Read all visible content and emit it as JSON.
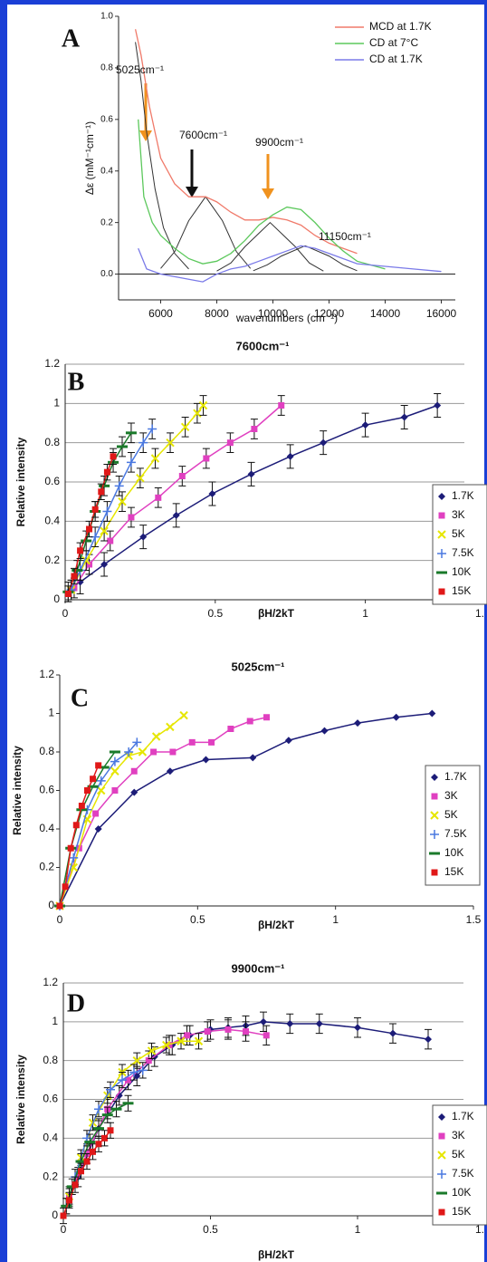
{
  "chart_data": [
    {
      "type": "line",
      "panel_label": "A",
      "x_label": "wavenumbers (cm⁻¹)",
      "y_label": "Δε (mM⁻¹cm⁻¹)",
      "xlim": [
        4500,
        16500
      ],
      "ylim": [
        -0.1,
        1.0
      ],
      "xticks": [
        6000,
        8000,
        10000,
        12000,
        14000,
        16000
      ],
      "yticks": [
        {
          "value": 0,
          "label": "0.0"
        },
        {
          "value": 0.2,
          "label": "0.2"
        },
        {
          "value": 0.4,
          "label": "0.4"
        },
        {
          "value": 0.6,
          "label": "0.6"
        },
        {
          "value": 0.8,
          "label": "0.8"
        },
        {
          "value": 1.0,
          "label": "1.0"
        }
      ],
      "legend": "top-right",
      "annotations": [
        "5025cm⁻¹",
        "7600cm⁻¹",
        "9900cm⁻¹",
        "11150cm⁻¹"
      ],
      "series": [
        {
          "name": "MCD at 1.7K",
          "color": "#f07a6a",
          "x": [
            5100,
            5300,
            5600,
            6000,
            6500,
            7000,
            7600,
            8000,
            8500,
            9000,
            9500,
            10000,
            10500,
            11000,
            11500,
            12000,
            12500,
            13000
          ],
          "values": [
            0.95,
            0.85,
            0.65,
            0.45,
            0.35,
            0.3,
            0.3,
            0.28,
            0.24,
            0.21,
            0.21,
            0.22,
            0.21,
            0.19,
            0.15,
            0.12,
            0.1,
            0.08
          ]
        },
        {
          "name": "CD at 7°C",
          "color": "#5cc85c",
          "x": [
            5200,
            5400,
            5700,
            6000,
            6500,
            7000,
            7500,
            8000,
            8500,
            9000,
            9500,
            10000,
            10500,
            11000,
            11500,
            12000,
            12500,
            13000,
            14000
          ],
          "values": [
            0.6,
            0.3,
            0.2,
            0.15,
            0.1,
            0.06,
            0.04,
            0.05,
            0.08,
            0.13,
            0.19,
            0.23,
            0.26,
            0.25,
            0.2,
            0.14,
            0.09,
            0.05,
            0.02
          ]
        },
        {
          "name": "CD at 1.7K",
          "color": "#7a7ae8",
          "x": [
            5200,
            5500,
            6000,
            7000,
            7500,
            8000,
            8500,
            9000,
            9500,
            10000,
            10500,
            11000,
            11500,
            12000,
            13000,
            14000,
            15000,
            16000
          ],
          "values": [
            0.1,
            0.02,
            0.0,
            -0.02,
            -0.03,
            0.0,
            0.02,
            0.03,
            0.05,
            0.07,
            0.09,
            0.11,
            0.1,
            0.08,
            0.04,
            0.03,
            0.02,
            0.01
          ]
        }
      ],
      "components": [
        {
          "color": "#333333",
          "x": [
            5100,
            5300,
            5500,
            5800,
            6100,
            6500,
            7000
          ],
          "values": [
            0.9,
            0.75,
            0.55,
            0.33,
            0.18,
            0.08,
            0.02
          ]
        },
        {
          "color": "#333333",
          "x": [
            6000,
            6500,
            7000,
            7600,
            8200,
            8700,
            9200
          ],
          "values": [
            0.022,
            0.087,
            0.207,
            0.3,
            0.207,
            0.087,
            0.022
          ]
        },
        {
          "color": "#333333",
          "x": [
            8000,
            8500,
            9000,
            9900,
            10800,
            11300,
            11800
          ],
          "values": [
            0.012,
            0.043,
            0.106,
            0.2,
            0.106,
            0.043,
            0.012
          ]
        },
        {
          "color": "#333333",
          "x": [
            9300,
            9800,
            10300,
            11150,
            12000,
            12500,
            13000
          ],
          "values": [
            0.013,
            0.036,
            0.07,
            0.11,
            0.07,
            0.036,
            0.013
          ]
        }
      ]
    },
    {
      "type": "scatter",
      "panel_label": "B",
      "title": "7600cm⁻¹",
      "x_label": "βH/2kT",
      "y_label": "Relative intensity",
      "xlim": [
        0,
        1.33
      ],
      "ylim": [
        0,
        1.2
      ],
      "grid": true,
      "legend": "right",
      "xticks": [
        0,
        0.5,
        1,
        {
          "value": 1.5,
          "label": "1."
        }
      ],
      "yticks": [
        0,
        0.2,
        0.4,
        0.6,
        0.8,
        1,
        1.2
      ],
      "series": [
        {
          "name": "1.7K",
          "color": "#1c1c78",
          "marker": "diamond",
          "error": 0.06,
          "x": [
            0.05,
            0.13,
            0.26,
            0.37,
            0.49,
            0.62,
            0.75,
            0.86,
            1.0,
            1.13,
            1.24
          ],
          "values": [
            0.09,
            0.18,
            0.32,
            0.43,
            0.54,
            0.64,
            0.73,
            0.8,
            0.89,
            0.93,
            0.99
          ]
        },
        {
          "name": "3K",
          "color": "#e040c0",
          "marker": "square",
          "error": 0.05,
          "x": [
            0.03,
            0.08,
            0.15,
            0.22,
            0.31,
            0.39,
            0.47,
            0.55,
            0.63,
            0.72
          ],
          "values": [
            0.06,
            0.18,
            0.3,
            0.42,
            0.52,
            0.63,
            0.72,
            0.8,
            0.87,
            0.99
          ]
        },
        {
          "name": "5K",
          "color": "#e6e600",
          "marker": "x",
          "error": 0.05,
          "x": [
            0.02,
            0.07,
            0.13,
            0.19,
            0.25,
            0.3,
            0.35,
            0.4,
            0.44,
            0.46
          ],
          "values": [
            0.05,
            0.2,
            0.35,
            0.5,
            0.62,
            0.72,
            0.8,
            0.88,
            0.95,
            0.99
          ]
        },
        {
          "name": "7.5K",
          "color": "#4a78e0",
          "marker": "plus",
          "error": 0.05,
          "x": [
            0.02,
            0.05,
            0.1,
            0.14,
            0.18,
            0.22,
            0.26,
            0.29
          ],
          "values": [
            0.05,
            0.15,
            0.32,
            0.45,
            0.58,
            0.7,
            0.8,
            0.87
          ]
        },
        {
          "name": "10K",
          "color": "#1a7a2a",
          "marker": "dash",
          "error": 0.05,
          "x": [
            0.01,
            0.04,
            0.07,
            0.1,
            0.13,
            0.16,
            0.19,
            0.22
          ],
          "values": [
            0.04,
            0.15,
            0.3,
            0.45,
            0.58,
            0.7,
            0.78,
            0.85
          ]
        },
        {
          "name": "15K",
          "color": "#e01818",
          "marker": "square",
          "error": 0.04,
          "x": [
            0.01,
            0.03,
            0.05,
            0.08,
            0.1,
            0.12,
            0.14,
            0.16
          ],
          "values": [
            0.03,
            0.12,
            0.25,
            0.36,
            0.46,
            0.55,
            0.65,
            0.73
          ]
        }
      ]
    },
    {
      "type": "scatter",
      "panel_label": "C",
      "title": "5025cm⁻¹",
      "x_label": "βH/2kT",
      "y_label": "Relative intensity",
      "xlim": [
        0,
        1.5
      ],
      "ylim": [
        0,
        1.2
      ],
      "grid": false,
      "legend": "right",
      "xticks": [
        0,
        0.5,
        1,
        1.5
      ],
      "yticks": [
        0,
        0.2,
        0.4,
        0.6,
        0.8,
        1,
        1.2
      ],
      "series": [
        {
          "name": "1.7K",
          "color": "#1c1c78",
          "marker": "diamond",
          "x": [
            0,
            0.14,
            0.27,
            0.4,
            0.53,
            0.7,
            0.83,
            0.96,
            1.08,
            1.22,
            1.35
          ],
          "values": [
            0,
            0.4,
            0.59,
            0.7,
            0.76,
            0.77,
            0.86,
            0.91,
            0.95,
            0.98,
            1.0
          ]
        },
        {
          "name": "3K",
          "color": "#e040c0",
          "marker": "square",
          "x": [
            0,
            0.07,
            0.13,
            0.2,
            0.27,
            0.34,
            0.41,
            0.48,
            0.55,
            0.62,
            0.69,
            0.75
          ],
          "values": [
            0,
            0.3,
            0.48,
            0.6,
            0.7,
            0.8,
            0.8,
            0.85,
            0.85,
            0.92,
            0.96,
            0.98
          ]
        },
        {
          "name": "5K",
          "color": "#e6e600",
          "marker": "x",
          "x": [
            0,
            0.05,
            0.1,
            0.15,
            0.2,
            0.25,
            0.3,
            0.35,
            0.4,
            0.45
          ],
          "values": [
            0,
            0.2,
            0.45,
            0.6,
            0.7,
            0.78,
            0.8,
            0.88,
            0.93,
            0.99
          ]
        },
        {
          "name": "7.5K",
          "color": "#4a78e0",
          "marker": "plus",
          "x": [
            0,
            0.05,
            0.1,
            0.15,
            0.2,
            0.25,
            0.28
          ],
          "values": [
            0,
            0.25,
            0.5,
            0.65,
            0.75,
            0.8,
            0.85
          ]
        },
        {
          "name": "10K",
          "color": "#1a7a2a",
          "marker": "dash",
          "x": [
            0,
            0.04,
            0.08,
            0.12,
            0.16,
            0.2
          ],
          "values": [
            0,
            0.3,
            0.5,
            0.62,
            0.72,
            0.8
          ]
        },
        {
          "name": "15K",
          "color": "#e01818",
          "marker": "square",
          "x": [
            0,
            0.02,
            0.04,
            0.06,
            0.08,
            0.1,
            0.12,
            0.14
          ],
          "values": [
            0,
            0.1,
            0.3,
            0.42,
            0.52,
            0.6,
            0.66,
            0.73
          ]
        }
      ]
    },
    {
      "type": "scatter",
      "panel_label": "D",
      "title": "9900cm⁻¹",
      "x_label": "βH/2kT",
      "y_label": "Relative intensity",
      "xlim": [
        0,
        1.36
      ],
      "ylim": [
        0,
        1.2
      ],
      "grid": true,
      "legend": "right",
      "xticks": [
        0,
        0.5,
        1,
        {
          "value": 1.5,
          "label": "1."
        }
      ],
      "yticks": [
        0,
        0.2,
        0.4,
        0.6,
        0.8,
        1,
        1.2
      ],
      "series": [
        {
          "name": "1.7K",
          "color": "#1c1c78",
          "marker": "diamond",
          "error": 0.05,
          "x": [
            0.05,
            0.12,
            0.19,
            0.25,
            0.31,
            0.37,
            0.43,
            0.5,
            0.56,
            0.62,
            0.68,
            0.77,
            0.87,
            1.0,
            1.12,
            1.24
          ],
          "values": [
            0.2,
            0.45,
            0.62,
            0.72,
            0.82,
            0.88,
            0.93,
            0.96,
            0.97,
            0.98,
            1.0,
            0.99,
            0.99,
            0.97,
            0.94,
            0.91
          ]
        },
        {
          "name": "3K",
          "color": "#e040c0",
          "marker": "square",
          "error": 0.05,
          "x": [
            0.02,
            0.08,
            0.15,
            0.22,
            0.29,
            0.36,
            0.42,
            0.49,
            0.56,
            0.62,
            0.69
          ],
          "values": [
            0.1,
            0.32,
            0.55,
            0.7,
            0.8,
            0.88,
            0.93,
            0.95,
            0.96,
            0.95,
            0.93
          ]
        },
        {
          "name": "5K",
          "color": "#e6e600",
          "marker": "x",
          "error": 0.04,
          "x": [
            0.02,
            0.06,
            0.1,
            0.15,
            0.2,
            0.25,
            0.3,
            0.35,
            0.4,
            0.46
          ],
          "values": [
            0.1,
            0.3,
            0.48,
            0.62,
            0.74,
            0.8,
            0.85,
            0.88,
            0.9,
            0.9
          ]
        },
        {
          "name": "7.5K",
          "color": "#4a78e0",
          "marker": "plus",
          "error": 0.04,
          "x": [
            0.01,
            0.04,
            0.08,
            0.12,
            0.16,
            0.2,
            0.24,
            0.27
          ],
          "values": [
            0.05,
            0.2,
            0.4,
            0.55,
            0.65,
            0.7,
            0.74,
            0.75
          ]
        },
        {
          "name": "10K",
          "color": "#1a7a2a",
          "marker": "dash",
          "error": 0.04,
          "x": [
            0.01,
            0.03,
            0.06,
            0.09,
            0.12,
            0.15,
            0.18,
            0.22
          ],
          "values": [
            0.05,
            0.15,
            0.28,
            0.38,
            0.45,
            0.52,
            0.55,
            0.58
          ]
        },
        {
          "name": "15K",
          "color": "#e01818",
          "marker": "square",
          "error": 0.04,
          "x": [
            0,
            0.02,
            0.04,
            0.06,
            0.08,
            0.1,
            0.12,
            0.14,
            0.16
          ],
          "values": [
            0,
            0.08,
            0.16,
            0.23,
            0.28,
            0.33,
            0.37,
            0.4,
            0.44
          ]
        }
      ]
    }
  ]
}
